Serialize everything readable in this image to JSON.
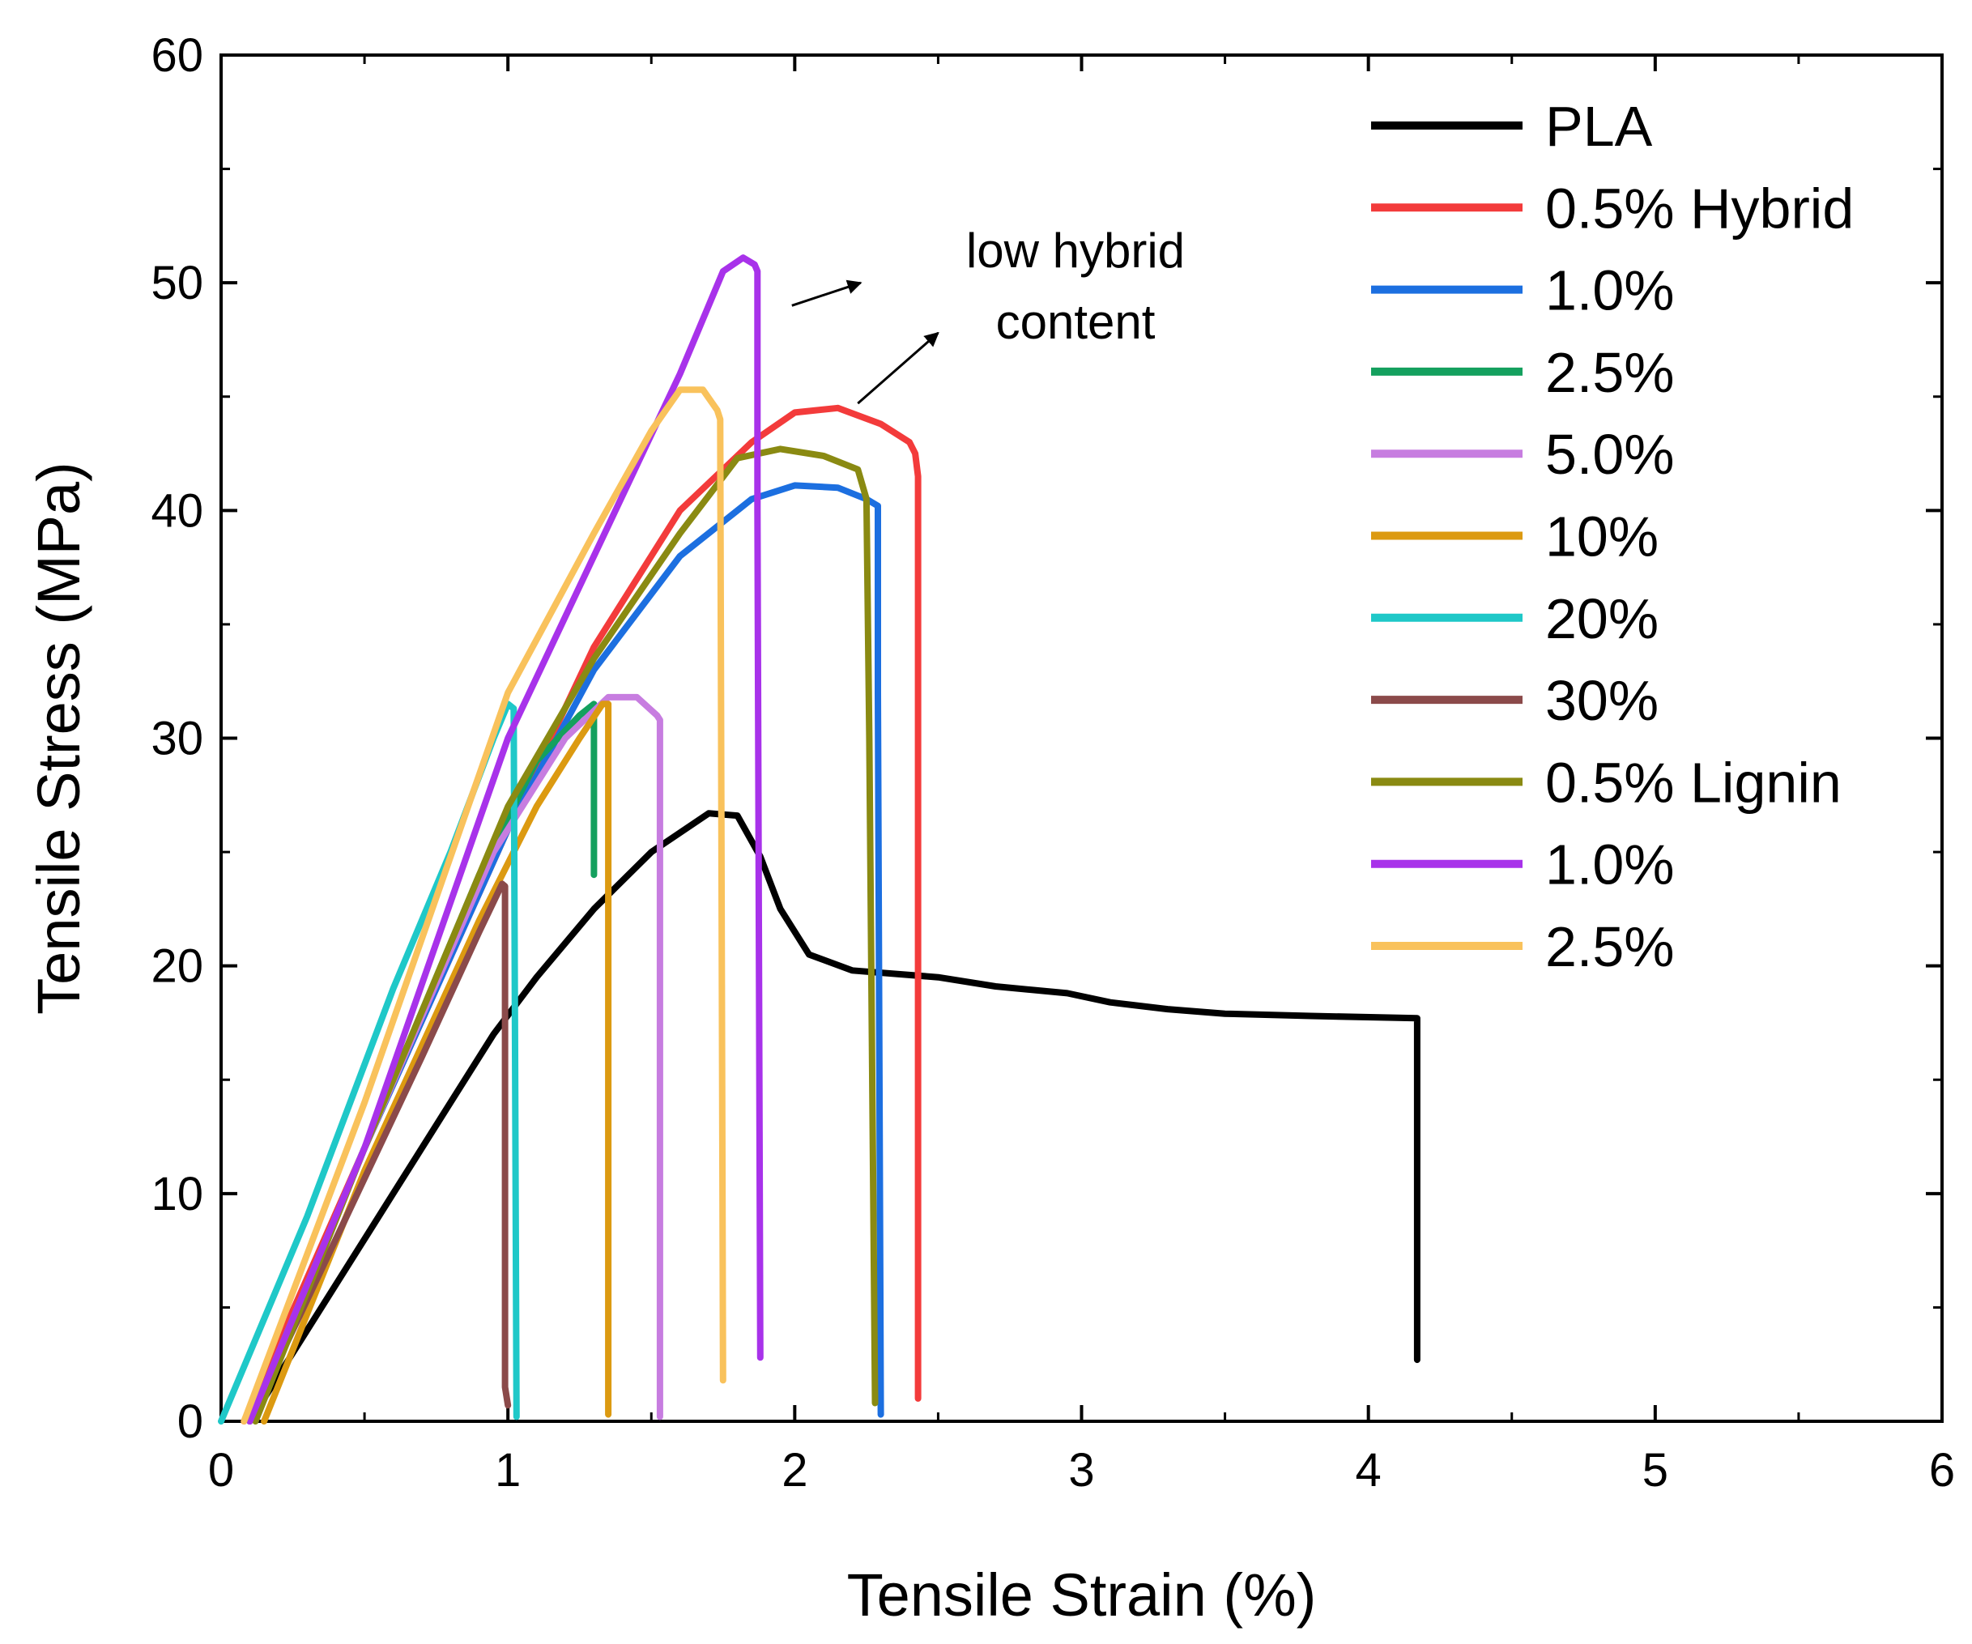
{
  "chart_data": {
    "type": "line",
    "title": "",
    "xlabel": "Tensile Strain (%)",
    "ylabel": "Tensile Stress (MPa)",
    "xlim": [
      0,
      6
    ],
    "ylim": [
      0,
      60
    ],
    "xticks": [
      0,
      1,
      2,
      3,
      4,
      5,
      6
    ],
    "yticks": [
      0,
      10,
      20,
      30,
      40,
      50,
      60
    ],
    "grid": false,
    "legend_position": "top-right",
    "annotation": {
      "lines": [
        "low hybrid",
        "content"
      ],
      "arrows": [
        {
          "from": [
            1.99,
            49.0
          ],
          "to": [
            2.23,
            50.0
          ]
        },
        {
          "from": [
            2.22,
            44.7
          ],
          "to": [
            2.5,
            47.8
          ]
        }
      ]
    },
    "series": [
      {
        "name": "PLA",
        "color": "#000000",
        "points": [
          [
            0.1,
            0
          ],
          [
            0.2,
            2
          ],
          [
            0.4,
            6
          ],
          [
            0.6,
            10
          ],
          [
            0.8,
            14
          ],
          [
            0.95,
            17
          ],
          [
            1.1,
            19.5
          ],
          [
            1.3,
            22.5
          ],
          [
            1.5,
            25
          ],
          [
            1.7,
            26.7
          ],
          [
            1.8,
            26.6
          ],
          [
            1.88,
            24.8
          ],
          [
            1.95,
            22.5
          ],
          [
            2.05,
            20.5
          ],
          [
            2.2,
            19.8
          ],
          [
            2.5,
            19.5
          ],
          [
            2.7,
            19.1
          ],
          [
            2.95,
            18.8
          ],
          [
            3.1,
            18.4
          ],
          [
            3.3,
            18.1
          ],
          [
            3.5,
            17.9
          ],
          [
            3.8,
            17.8
          ],
          [
            4.17,
            17.7
          ],
          [
            4.17,
            2.7
          ]
        ]
      },
      {
        "name": "0.5% Hybrid",
        "color": "#f33b3b",
        "points": [
          [
            0.08,
            0
          ],
          [
            0.5,
            12
          ],
          [
            1.0,
            26
          ],
          [
            1.3,
            34
          ],
          [
            1.6,
            40
          ],
          [
            1.85,
            43
          ],
          [
            2.0,
            44.3
          ],
          [
            2.15,
            44.5
          ],
          [
            2.3,
            43.8
          ],
          [
            2.4,
            43.0
          ],
          [
            2.42,
            42.5
          ],
          [
            2.43,
            41.5
          ],
          [
            2.43,
            1.0
          ]
        ]
      },
      {
        "name": "1.0%",
        "color": "#1c6fe0",
        "points": [
          [
            0.1,
            0
          ],
          [
            0.5,
            12
          ],
          [
            1.0,
            26
          ],
          [
            1.3,
            33
          ],
          [
            1.6,
            38
          ],
          [
            1.85,
            40.5
          ],
          [
            2.0,
            41.1
          ],
          [
            2.15,
            41.0
          ],
          [
            2.25,
            40.5
          ],
          [
            2.29,
            40.2
          ],
          [
            2.29,
            32
          ],
          [
            2.3,
            0.3
          ]
        ]
      },
      {
        "name": "2.5%",
        "color": "#14a05e",
        "points": [
          [
            0.1,
            0
          ],
          [
            0.5,
            12
          ],
          [
            0.9,
            24
          ],
          [
            1.1,
            29
          ],
          [
            1.25,
            31
          ],
          [
            1.3,
            31.5
          ],
          [
            1.3,
            24
          ]
        ]
      },
      {
        "name": "5.0%",
        "color": "#c77de0",
        "points": [
          [
            0.1,
            0
          ],
          [
            0.5,
            12
          ],
          [
            0.95,
            25
          ],
          [
            1.2,
            30
          ],
          [
            1.35,
            31.8
          ],
          [
            1.45,
            31.8
          ],
          [
            1.52,
            31.0
          ],
          [
            1.53,
            30.8
          ],
          [
            1.53,
            0.2
          ]
        ]
      },
      {
        "name": "10%",
        "color": "#dc9a11",
        "points": [
          [
            0.15,
            0
          ],
          [
            0.5,
            11
          ],
          [
            0.9,
            22
          ],
          [
            1.1,
            27
          ],
          [
            1.25,
            30
          ],
          [
            1.33,
            31.5
          ],
          [
            1.35,
            31.5
          ],
          [
            1.35,
            0.3
          ]
        ]
      },
      {
        "name": "20%",
        "color": "#1fc8c8",
        "points": [
          [
            0.0,
            0
          ],
          [
            0.3,
            9
          ],
          [
            0.6,
            19
          ],
          [
            0.8,
            25
          ],
          [
            0.95,
            30
          ],
          [
            1.0,
            31.5
          ],
          [
            1.02,
            31.3
          ],
          [
            1.03,
            0.2
          ]
        ]
      },
      {
        "name": "30%",
        "color": "#8b4a4a",
        "points": [
          [
            0.1,
            0
          ],
          [
            0.4,
            8
          ],
          [
            0.7,
            16
          ],
          [
            0.9,
            21.5
          ],
          [
            0.98,
            23.6
          ],
          [
            0.99,
            23.5
          ],
          [
            0.99,
            1.5
          ],
          [
            1.0,
            0.7
          ]
        ]
      },
      {
        "name": "0.5% Lignin",
        "color": "#8a8a12",
        "points": [
          [
            0.12,
            0
          ],
          [
            0.5,
            12
          ],
          [
            1.0,
            27
          ],
          [
            1.3,
            33.5
          ],
          [
            1.6,
            39
          ],
          [
            1.8,
            42.3
          ],
          [
            1.95,
            42.7
          ],
          [
            2.1,
            42.4
          ],
          [
            2.22,
            41.8
          ],
          [
            2.25,
            40.5
          ],
          [
            2.26,
            30
          ],
          [
            2.28,
            0.8
          ]
        ]
      },
      {
        "name": "1.0%",
        "color": "#a832ea",
        "points": [
          [
            0.1,
            0
          ],
          [
            0.5,
            12
          ],
          [
            1.0,
            30
          ],
          [
            1.3,
            38
          ],
          [
            1.6,
            46
          ],
          [
            1.75,
            50.5
          ],
          [
            1.82,
            51.1
          ],
          [
            1.86,
            50.8
          ],
          [
            1.87,
            50.5
          ],
          [
            1.87,
            40
          ],
          [
            1.88,
            2.8
          ]
        ]
      },
      {
        "name": "2.5%",
        "color": "#f9c25c",
        "points": [
          [
            0.08,
            0
          ],
          [
            0.5,
            14
          ],
          [
            1.0,
            32
          ],
          [
            1.3,
            39
          ],
          [
            1.5,
            43.5
          ],
          [
            1.6,
            45.3
          ],
          [
            1.68,
            45.3
          ],
          [
            1.73,
            44.4
          ],
          [
            1.74,
            44.0
          ],
          [
            1.75,
            1.8
          ]
        ]
      }
    ]
  }
}
